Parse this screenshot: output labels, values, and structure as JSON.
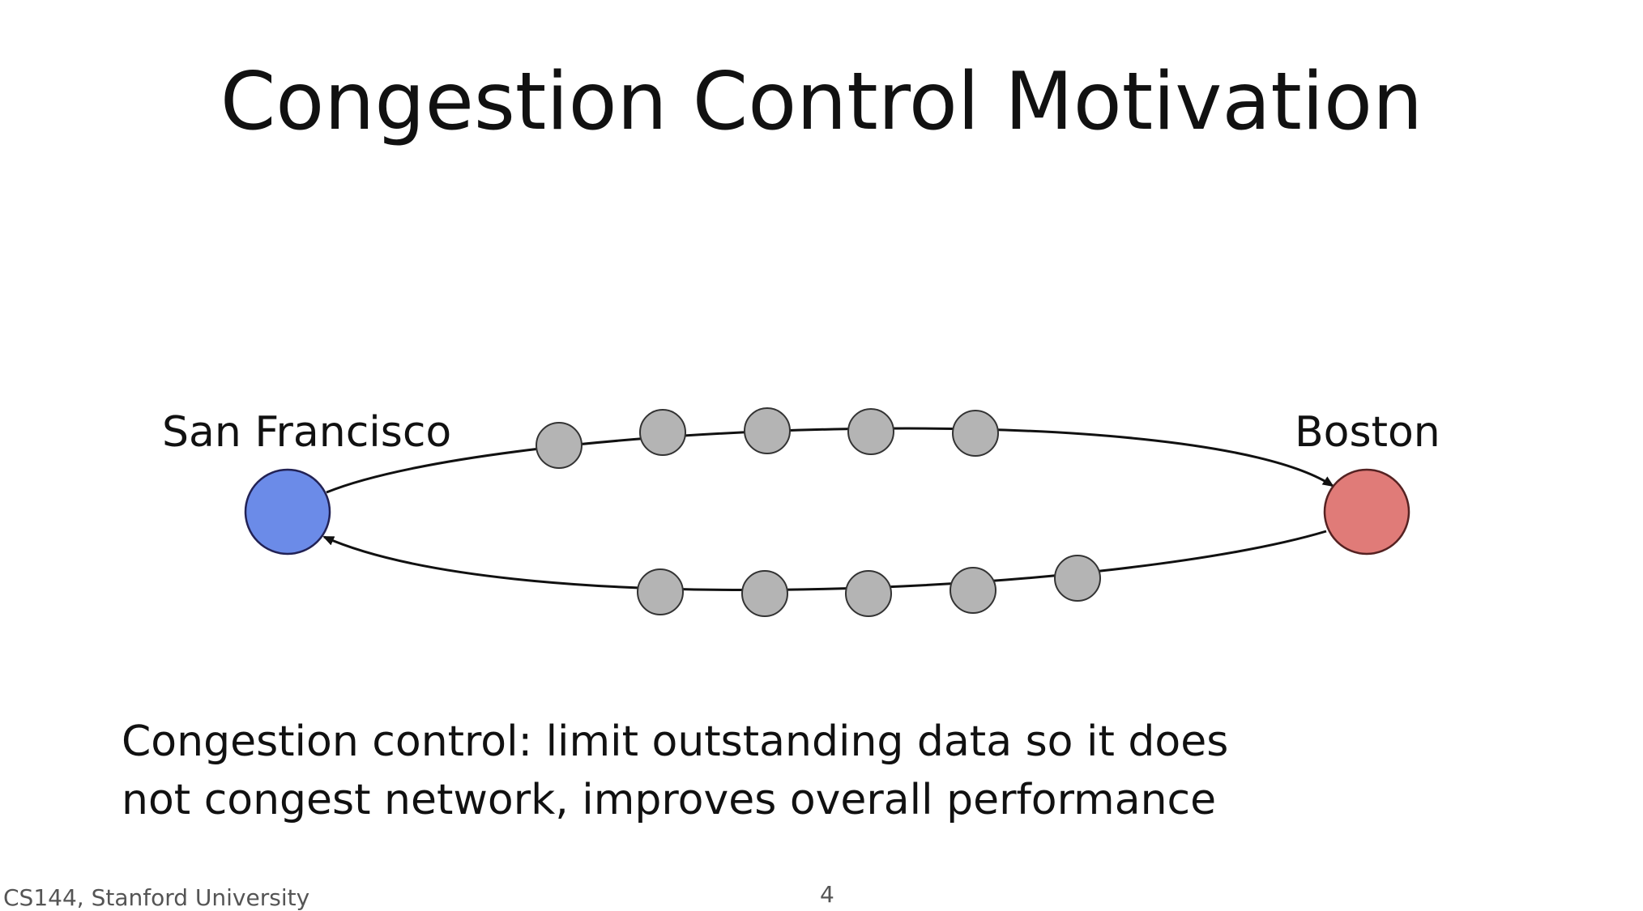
{
  "slide": {
    "title": "Congestion Control Motivation",
    "caption_line1": "Congestion control: limit outstanding data so it does",
    "caption_line2": "not congest network, improves overall performance",
    "footer_left": "CS144, Stanford University",
    "page_number": "4"
  },
  "diagram": {
    "source": {
      "label": "San Francisco",
      "color": "#6b8be8"
    },
    "destination": {
      "label": "Boston",
      "color": "#e07b78"
    },
    "router_color": "#b4b4b4",
    "forward_path_router_count": 5,
    "return_path_router_count": 5
  }
}
